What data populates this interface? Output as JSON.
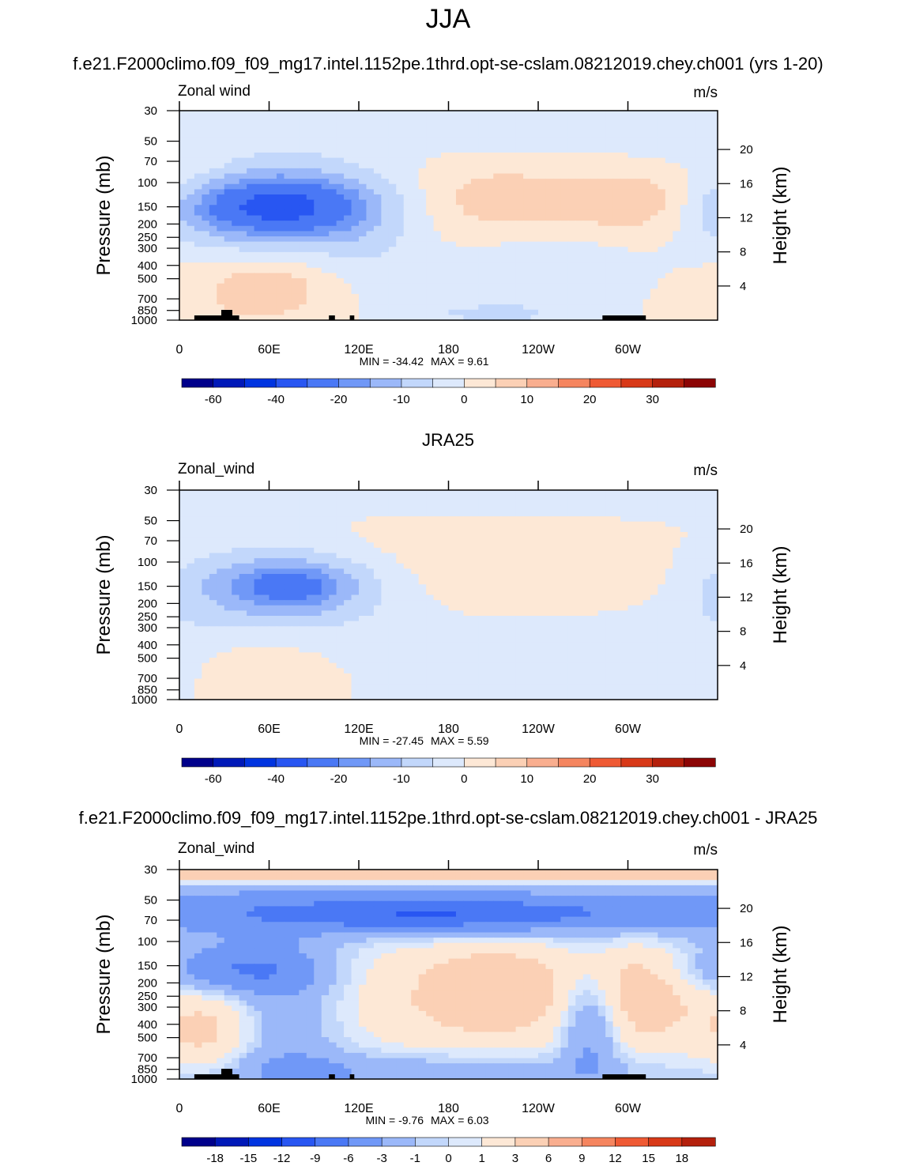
{
  "figure": {
    "main_title": "JJA",
    "season": "JJA"
  },
  "colors": {
    "levels_full": [
      "#00008b",
      "#0019b8",
      "#0034e0",
      "#2856f2",
      "#4a78f5",
      "#7098f7",
      "#9bb8f9",
      "#c2d7fb",
      "#dde9fc",
      "#fde8d6",
      "#fbd0b5",
      "#f9ae8f",
      "#f5855f",
      "#ef5a34",
      "#d83918",
      "#b4200c",
      "#8c0505"
    ],
    "land": "#000000",
    "frame": "#000000"
  },
  "chart_data": [
    {
      "type": "heatmap",
      "panel_title": "f.e21.F2000climo.f09_f09_mg17.intel.1152pe.1thrd.opt-se-cslam.08212019.chey.ch001 (yrs 1-20)",
      "variable_label": "Zonal wind",
      "units": "m/s",
      "ylabel": "Pressure (mb)",
      "y2label": "Height (km)",
      "x_ticks": [
        "0",
        "60E",
        "120E",
        "180",
        "120W",
        "60W"
      ],
      "x_tick_lon": [
        0,
        60,
        120,
        180,
        240,
        300
      ],
      "xlim": [
        0,
        360
      ],
      "y_ticks": [
        "30",
        "50",
        "70",
        "100",
        "150",
        "200",
        "250",
        "300",
        "400",
        "500",
        "700",
        "850",
        "1000"
      ],
      "y_tick_p": [
        30,
        50,
        70,
        100,
        150,
        200,
        250,
        300,
        400,
        500,
        700,
        850,
        1000
      ],
      "ylim": [
        1000,
        30
      ],
      "height_ticks": [
        "20",
        "16",
        "12",
        "8",
        "4"
      ],
      "height_tick_km": [
        20,
        16,
        12,
        8,
        4
      ],
      "min_text": "MIN = -34.42",
      "max_text": "MAX =   9.61",
      "min": -34.42,
      "max": 9.61,
      "colorbar_labels": [
        "-60",
        "-40",
        "-20",
        "-10",
        "0",
        "10",
        "20",
        "30"
      ],
      "colorbar_levels": [
        -70,
        -60,
        -50,
        -40,
        -30,
        -20,
        -15,
        -10,
        -5,
        0,
        5,
        10,
        15,
        20,
        25,
        30,
        35,
        40
      ],
      "has_land": true,
      "field": {
        "base": 0,
        "blobs": [
          {
            "lon": 0,
            "lat": 0,
            "p": 30,
            "lonw": 400,
            "pw": 0.55,
            "a": -4
          },
          {
            "lon": 70,
            "p": 150,
            "lonw": 55,
            "pw": 0.45,
            "a": -26
          },
          {
            "lon": 65,
            "p": 150,
            "lonw": 30,
            "pw": 0.25,
            "a": -10
          },
          {
            "lon": 60,
            "p": 560,
            "lonw": 25,
            "pw": 0.3,
            "a": 6
          },
          {
            "lon": 45,
            "p": 750,
            "lonw": 45,
            "pw": 0.5,
            "a": 4
          },
          {
            "lon": 210,
            "p": 140,
            "lonw": 55,
            "pw": 0.5,
            "a": 9
          },
          {
            "lon": 310,
            "p": 140,
            "lonw": 30,
            "pw": 0.4,
            "a": 9
          },
          {
            "lon": 240,
            "p": 350,
            "lonw": 45,
            "pw": 0.5,
            "a": -4
          },
          {
            "lon": 210,
            "p": 900,
            "lonw": 40,
            "pw": 0.15,
            "a": -6
          },
          {
            "lon": 130,
            "p": 350,
            "lonw": 25,
            "pw": 0.5,
            "a": -3
          },
          {
            "lon": 10,
            "p": 80,
            "lonw": 20,
            "pw": 0.35,
            "a": 3
          }
        ]
      }
    },
    {
      "type": "heatmap",
      "panel_title": "JRA25",
      "variable_label": "Zonal_wind",
      "units": "m/s",
      "ylabel": "Pressure (mb)",
      "y2label": "Height (km)",
      "x_ticks": [
        "0",
        "60E",
        "120E",
        "180",
        "120W",
        "60W"
      ],
      "x_tick_lon": [
        0,
        60,
        120,
        180,
        240,
        300
      ],
      "xlim": [
        0,
        360
      ],
      "y_ticks": [
        "30",
        "50",
        "70",
        "100",
        "150",
        "200",
        "250",
        "300",
        "400",
        "500",
        "700",
        "850",
        "1000"
      ],
      "y_tick_p": [
        30,
        50,
        70,
        100,
        150,
        200,
        250,
        300,
        400,
        500,
        700,
        850,
        1000
      ],
      "ylim": [
        1000,
        30
      ],
      "height_ticks": [
        "20",
        "16",
        "12",
        "8",
        "4"
      ],
      "height_tick_km": [
        20,
        16,
        12,
        8,
        4
      ],
      "min_text": "MIN = -27.45",
      "max_text": "MAX =   5.59",
      "min": -27.45,
      "max": 5.59,
      "colorbar_labels": [
        "-60",
        "-40",
        "-20",
        "-10",
        "0",
        "10",
        "20",
        "30"
      ],
      "colorbar_levels": [
        -70,
        -60,
        -50,
        -40,
        -30,
        -20,
        -15,
        -10,
        -5,
        0,
        5,
        10,
        15,
        20,
        25,
        30,
        35,
        40
      ],
      "has_land": false,
      "field": {
        "base": 0,
        "blobs": [
          {
            "lon": 180,
            "p": 30,
            "lonw": 400,
            "pw": 0.3,
            "a": -3
          },
          {
            "lon": 70,
            "p": 150,
            "lonw": 50,
            "pw": 0.45,
            "a": -18
          },
          {
            "lon": 75,
            "p": 150,
            "lonw": 22,
            "pw": 0.22,
            "a": -9
          },
          {
            "lon": 190,
            "p": 110,
            "lonw": 90,
            "pw": 0.6,
            "a": 4
          },
          {
            "lon": 300,
            "p": 140,
            "lonw": 25,
            "pw": 0.3,
            "a": 2
          },
          {
            "lon": 60,
            "p": 650,
            "lonw": 40,
            "pw": 0.4,
            "a": 4
          },
          {
            "lon": 220,
            "p": 500,
            "lonw": 90,
            "pw": 0.5,
            "a": -4
          },
          {
            "lon": 340,
            "p": 400,
            "lonw": 30,
            "pw": 0.6,
            "a": -3
          }
        ]
      }
    },
    {
      "type": "heatmap",
      "panel_title": "f.e21.F2000climo.f09_f09_mg17.intel.1152pe.1thrd.opt-se-cslam.08212019.chey.ch001 - JRA25",
      "variable_label": "Zonal_wind",
      "units": "m/s",
      "ylabel": "Pressure (mb)",
      "y2label": "Height (km)",
      "x_ticks": [
        "0",
        "60E",
        "120E",
        "180",
        "120W",
        "60W"
      ],
      "x_tick_lon": [
        0,
        60,
        120,
        180,
        240,
        300
      ],
      "xlim": [
        0,
        360
      ],
      "y_ticks": [
        "30",
        "50",
        "70",
        "100",
        "150",
        "200",
        "250",
        "300",
        "400",
        "500",
        "700",
        "850",
        "1000"
      ],
      "y_tick_p": [
        30,
        50,
        70,
        100,
        150,
        200,
        250,
        300,
        400,
        500,
        700,
        850,
        1000
      ],
      "ylim": [
        1000,
        30
      ],
      "height_ticks": [
        "20",
        "16",
        "12",
        "8",
        "4"
      ],
      "height_tick_km": [
        20,
        16,
        12,
        8,
        4
      ],
      "min_text": "MIN =  -9.76",
      "max_text": "MAX =   6.03",
      "min": -9.76,
      "max": 6.03,
      "colorbar_labels": [
        "-18",
        "-15",
        "-12",
        "-9",
        "-6",
        "-3",
        "-1",
        "0",
        "1",
        "3",
        "6",
        "9",
        "12",
        "15",
        "18"
      ],
      "colorbar_levels": [
        -21,
        -18,
        -15,
        -12,
        -9,
        -6,
        -3,
        -1,
        0,
        1,
        3,
        6,
        9,
        12,
        15,
        18,
        21
      ],
      "has_land": true,
      "field": {
        "base": 0,
        "blobs": [
          {
            "lon": 180,
            "p": 32,
            "lonw": 400,
            "pw": 0.12,
            "a": 5
          },
          {
            "lon": 180,
            "p": 60,
            "lonw": 400,
            "pw": 0.3,
            "a": -5
          },
          {
            "lon": 170,
            "p": 65,
            "lonw": 70,
            "pw": 0.18,
            "a": -5
          },
          {
            "lon": 40,
            "p": 160,
            "lonw": 40,
            "pw": 0.3,
            "a": -6
          },
          {
            "lon": 70,
            "p": 400,
            "lonw": 30,
            "pw": 1.0,
            "a": -3
          },
          {
            "lon": 190,
            "p": 250,
            "lonw": 75,
            "pw": 0.8,
            "a": 3
          },
          {
            "lon": 215,
            "p": 220,
            "lonw": 30,
            "pw": 0.5,
            "a": 2.5
          },
          {
            "lon": 310,
            "p": 250,
            "lonw": 25,
            "pw": 0.6,
            "a": 4
          },
          {
            "lon": 275,
            "p": 400,
            "lonw": 14,
            "pw": 0.6,
            "a": -5
          },
          {
            "lon": 20,
            "p": 450,
            "lonw": 25,
            "pw": 0.6,
            "a": 4
          },
          {
            "lon": 150,
            "p": 900,
            "lonw": 120,
            "pw": 0.25,
            "a": -3
          }
        ]
      }
    }
  ]
}
